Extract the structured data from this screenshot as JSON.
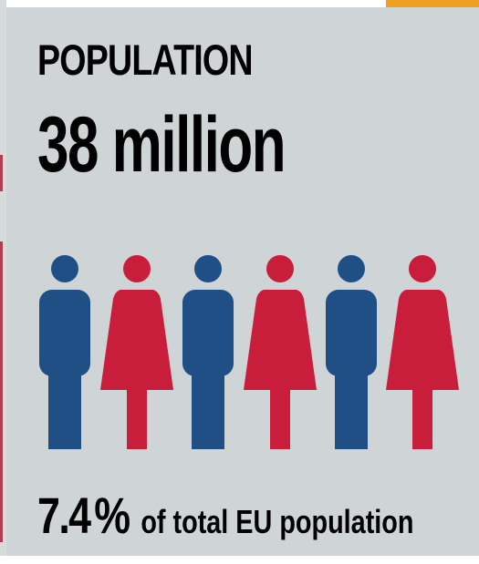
{
  "infographic": {
    "label": "POPULATION",
    "value": "38 million",
    "share_value": "7.4",
    "share_unit": "%",
    "share_text": "of total EU population"
  },
  "colors": {
    "red": "#c81e3c",
    "blue": "#1f4f85",
    "panel": "#cfd4d6",
    "accent": "#f0a020"
  },
  "figures": [
    {
      "icon": "man-icon",
      "color": "blue"
    },
    {
      "icon": "woman-icon",
      "color": "red"
    },
    {
      "icon": "man-icon",
      "color": "blue"
    },
    {
      "icon": "woman-icon",
      "color": "red"
    },
    {
      "icon": "man-icon",
      "color": "blue"
    },
    {
      "icon": "woman-icon",
      "color": "red"
    }
  ]
}
